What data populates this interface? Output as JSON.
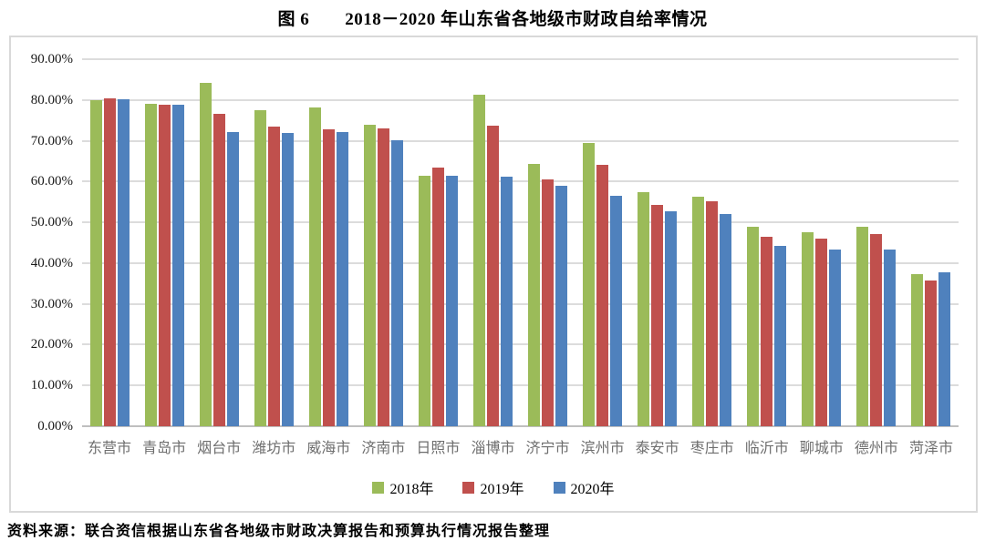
{
  "figure": {
    "title": "图 6　　2018－2020 年山东省各地级市财政自给率情况",
    "source_note": "资料来源：联合资信根据山东省各地级市财政决算报告和预算执行情况报告整理"
  },
  "chart_data": {
    "type": "bar",
    "title": "图 6　2018－2020 年山东省各地级市财政自给率情况",
    "xlabel": "",
    "ylabel": "",
    "categories": [
      "东营市",
      "青岛市",
      "烟台市",
      "潍坊市",
      "威海市",
      "济南市",
      "日照市",
      "淄博市",
      "济宁市",
      "滨州市",
      "泰安市",
      "枣庄市",
      "临沂市",
      "聊城市",
      "德州市",
      "菏泽市"
    ],
    "series": [
      {
        "name": "2018年",
        "color": "#9BBB59",
        "values": [
          80.0,
          79.0,
          84.2,
          77.6,
          78.1,
          73.9,
          61.5,
          81.2,
          64.4,
          69.5,
          57.5,
          56.3,
          48.9,
          47.5,
          48.9,
          37.2
        ]
      },
      {
        "name": "2019年",
        "color": "#C0504D",
        "values": [
          80.3,
          78.8,
          76.7,
          73.4,
          72.8,
          73.0,
          63.4,
          73.6,
          60.6,
          64.0,
          54.3,
          55.1,
          46.4,
          46.1,
          47.2,
          35.8
        ]
      },
      {
        "name": "2020年",
        "color": "#4F81BD",
        "values": [
          80.2,
          78.9,
          72.1,
          72.0,
          72.1,
          70.2,
          61.5,
          61.2,
          59.0,
          56.4,
          52.7,
          52.1,
          44.3,
          43.3,
          43.4,
          37.7
        ]
      }
    ],
    "ylim": [
      0,
      90
    ],
    "yticks": [
      {
        "value": 0,
        "label": "0.00%"
      },
      {
        "value": 10,
        "label": "10.00%"
      },
      {
        "value": 20,
        "label": "20.00%"
      },
      {
        "value": 30,
        "label": "30.00%"
      },
      {
        "value": 40,
        "label": "40.00%"
      },
      {
        "value": 50,
        "label": "50.00%"
      },
      {
        "value": 60,
        "label": "60.00%"
      },
      {
        "value": 70,
        "label": "70.00%"
      },
      {
        "value": 80,
        "label": "80.00%"
      },
      {
        "value": 90,
        "label": "90.00%"
      }
    ],
    "grid": true,
    "legend_position": "bottom",
    "colors": {
      "gridline": "#dcdcdc",
      "axis_line": "#bfbfbf",
      "y_tick_text": "#1a1a1a",
      "x_tick_text": "#6e6e6e",
      "border": "#d9d9d9"
    }
  }
}
